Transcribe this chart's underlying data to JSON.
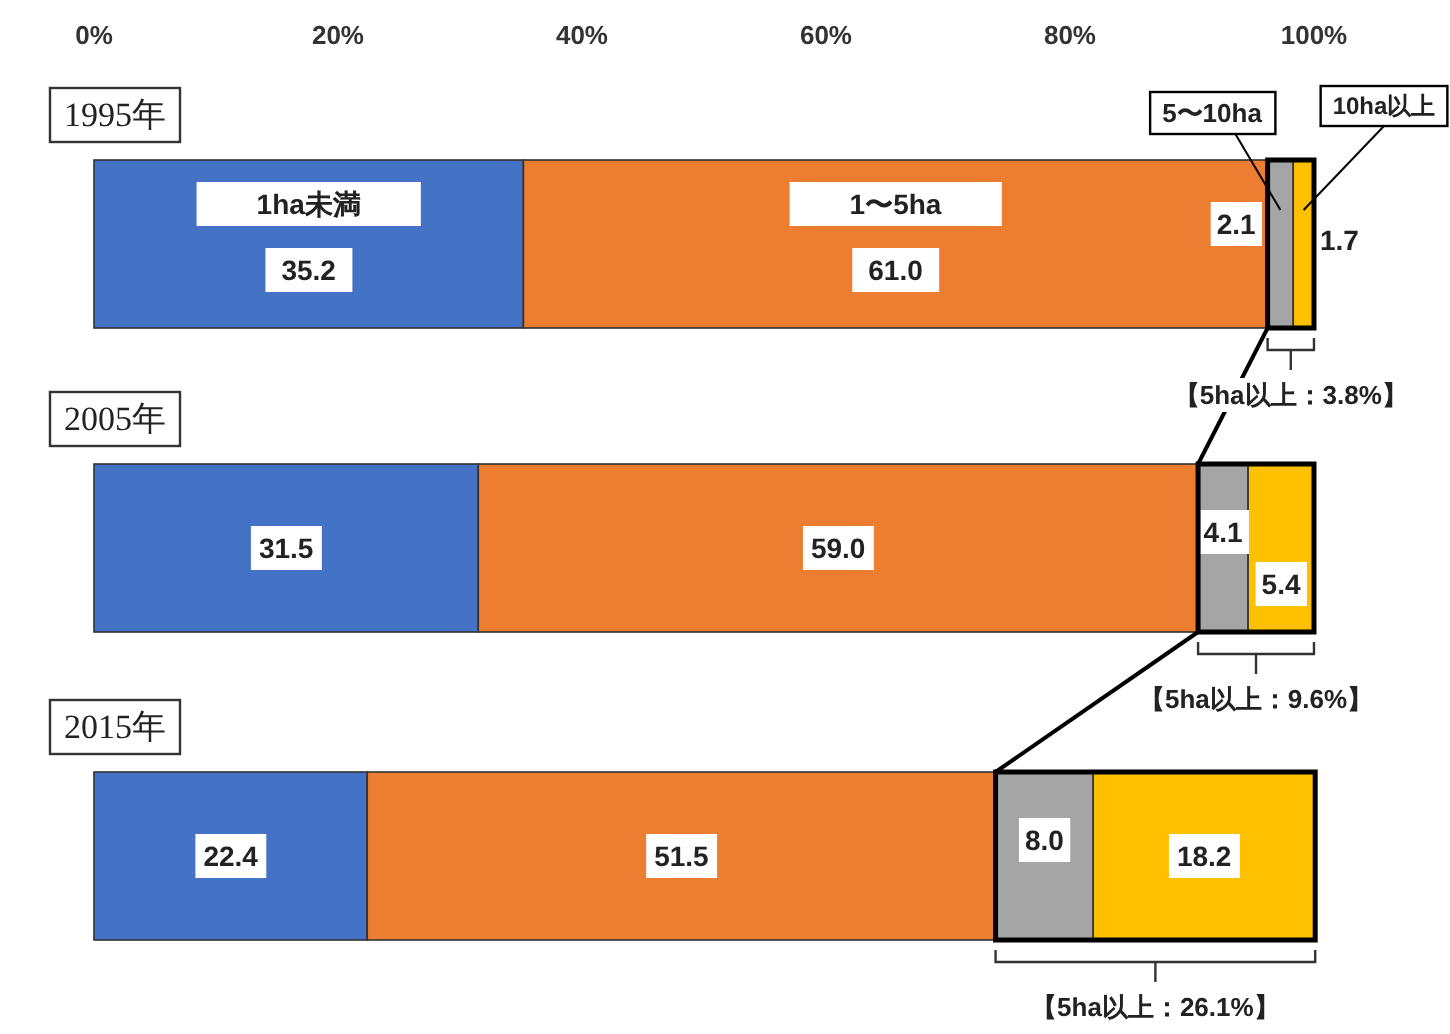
{
  "chart_data": {
    "type": "bar",
    "orientation": "horizontal",
    "stacked": true,
    "categories": [
      "1995年",
      "2005年",
      "2015年"
    ],
    "series": [
      {
        "name": "1ha未満",
        "color": "#4472c4",
        "values": [
          35.2,
          31.5,
          22.4
        ],
        "value_labels": [
          "35.2",
          "31.5",
          "22.4"
        ]
      },
      {
        "name": "1〜5ha",
        "color": "#ed7d31",
        "values": [
          61.0,
          59.0,
          51.5
        ],
        "value_labels": [
          "61.0",
          "59.0",
          "51.5"
        ]
      },
      {
        "name": "5〜10ha",
        "color": "#a5a5a5",
        "values": [
          2.1,
          4.1,
          8.0
        ],
        "value_labels": [
          "2.1",
          "4.1",
          "8.0"
        ]
      },
      {
        "name": "10ha以上",
        "color": "#ffc000",
        "values": [
          1.7,
          5.4,
          18.2
        ],
        "value_labels": [
          "1.7",
          "5.4",
          "18.2"
        ]
      }
    ],
    "xlim": [
      0,
      100.1
    ],
    "xticks": [
      {
        "value": 0,
        "label": "0%"
      },
      {
        "value": 20,
        "label": "20%"
      },
      {
        "value": 40,
        "label": "40%"
      },
      {
        "value": 60,
        "label": "60%"
      },
      {
        "value": 80,
        "label": "80%"
      },
      {
        "value": 100,
        "label": "100%"
      }
    ],
    "grid": false,
    "annotations": [
      "【5ha以上：3.8%】",
      "【5ha以上：9.6%】",
      "【5ha以上：26.1%】"
    ]
  }
}
